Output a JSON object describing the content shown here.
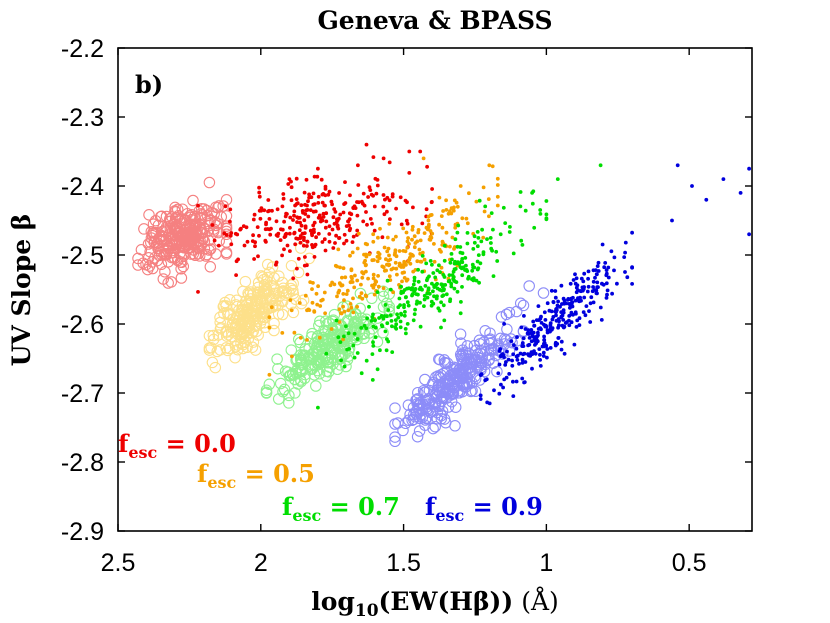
{
  "chart_data": {
    "type": "scatter",
    "title": "Geneva & BPASS",
    "panel_label": "b)",
    "xlabel": {
      "prefix": "log",
      "sub": "10",
      "main": "(EW(Hβ))",
      "unit": "(Å)"
    },
    "ylabel": "UV Slope β",
    "xlim": [
      2.5,
      0.28
    ],
    "ylim": [
      -2.9,
      -2.2
    ],
    "x_ticks": [
      2.5,
      2,
      1.5,
      1,
      0.5
    ],
    "x_tick_labels": [
      "2.5",
      "2",
      "1.5",
      "1",
      "0.5"
    ],
    "y_ticks": [
      -2.2,
      -2.3,
      -2.4,
      -2.5,
      -2.6,
      -2.7,
      -2.8,
      -2.9
    ],
    "y_tick_labels": [
      "-2.2",
      "-2.3",
      "-2.4",
      "-2.5",
      "-2.6",
      "-2.7",
      "-2.8",
      "-2.9"
    ],
    "grid": false,
    "seed": 7,
    "series": [
      {
        "name": "Geneva fesc=0.0",
        "marker": "open-circle",
        "color": "#f58080",
        "n": 260,
        "x_range": [
          2.43,
          2.12
        ],
        "y_start": -2.485,
        "y_end": -2.465,
        "y_spread": 0.022,
        "extras": [
          [
            2.18,
            -2.395
          ],
          [
            2.12,
            -2.42
          ],
          [
            2.43,
            -2.505
          ],
          [
            2.38,
            -2.51
          ],
          [
            2.33,
            -2.5
          ]
        ]
      },
      {
        "name": "Geneva fesc=0.5",
        "marker": "open-circle",
        "color": "#fde08a",
        "n": 230,
        "x_range": [
          2.18,
          1.85
        ],
        "y_start": -2.625,
        "y_end": -2.535,
        "y_spread": 0.022,
        "extras": [
          [
            2.18,
            -2.635
          ],
          [
            1.83,
            -2.505
          ],
          [
            1.86,
            -2.49
          ]
        ]
      },
      {
        "name": "Geneva fesc=0.7",
        "marker": "open-circle",
        "color": "#8ef28e",
        "n": 230,
        "x_range": [
          1.98,
          1.55
        ],
        "y_start": -2.695,
        "y_end": -2.575,
        "y_spread": 0.02,
        "extras": [
          [
            1.98,
            -2.7
          ],
          [
            1.55,
            -2.575
          ],
          [
            1.57,
            -2.56
          ]
        ]
      },
      {
        "name": "Geneva fesc=0.9",
        "marker": "open-circle",
        "color": "#8c8cf8",
        "n": 270,
        "x_range": [
          1.53,
          1.08
        ],
        "y_start": -2.755,
        "y_end": -2.6,
        "y_spread": 0.02,
        "extras": [
          [
            1.53,
            -2.77
          ],
          [
            1.09,
            -2.57
          ],
          [
            1.01,
            -2.555
          ],
          [
            1.06,
            -2.545
          ]
        ]
      },
      {
        "name": "BPASS fesc=0.0",
        "marker": "dot",
        "color": "#ee0000",
        "n": 300,
        "x_range": [
          2.22,
          1.4
        ],
        "y_start": -2.48,
        "y_end": -2.42,
        "y_spread": 0.03,
        "extras": [
          [
            1.63,
            -2.34
          ],
          [
            1.48,
            -2.35
          ],
          [
            1.66,
            -2.37
          ],
          [
            1.8,
            -2.375
          ],
          [
            1.9,
            -2.39
          ],
          [
            1.57,
            -2.36
          ]
        ]
      },
      {
        "name": "BPASS fesc=0.5",
        "marker": "dot",
        "color": "#f5a000",
        "n": 280,
        "x_range": [
          1.97,
          1.17
        ],
        "y_start": -2.62,
        "y_end": -2.41,
        "y_spread": 0.025,
        "extras": [
          [
            1.43,
            -2.36
          ],
          [
            1.2,
            -2.37
          ],
          [
            1.3,
            -2.4
          ],
          [
            1.86,
            -2.62
          ]
        ]
      },
      {
        "name": "BPASS fesc=0.7",
        "marker": "dot",
        "color": "#00dd00",
        "n": 280,
        "x_range": [
          1.8,
          1.0
        ],
        "y_start": -2.66,
        "y_end": -2.43,
        "y_spread": 0.025,
        "extras": [
          [
            0.81,
            -2.37
          ],
          [
            0.96,
            -2.39
          ],
          [
            1.05,
            -2.41
          ],
          [
            1.16,
            -2.47
          ]
        ]
      },
      {
        "name": "BPASS fesc=0.9",
        "marker": "dot",
        "color": "#0000dd",
        "n": 300,
        "x_range": [
          1.23,
          0.7
        ],
        "y_start": -2.69,
        "y_end": -2.5,
        "y_spread": 0.022,
        "extras": [
          [
            0.29,
            -2.375
          ],
          [
            0.32,
            -2.41
          ],
          [
            0.29,
            -2.47
          ],
          [
            0.54,
            -2.37
          ],
          [
            0.49,
            -2.4
          ],
          [
            0.44,
            -2.42
          ],
          [
            0.38,
            -2.39
          ],
          [
            0.56,
            -2.45
          ]
        ]
      }
    ],
    "legend": [
      {
        "label_main": "f",
        "label_sub": "esc",
        "label_value": " = 0.0",
        "color": "#ee0000"
      },
      {
        "label_main": "f",
        "label_sub": "esc",
        "label_value": " = 0.5",
        "color": "#f5a000"
      },
      {
        "label_main": "f",
        "label_sub": "esc",
        "label_value": " = 0.7",
        "color": "#00dd00"
      },
      {
        "label_main": "f",
        "label_sub": "esc",
        "label_value": " = 0.9",
        "color": "#0000dd"
      }
    ]
  }
}
